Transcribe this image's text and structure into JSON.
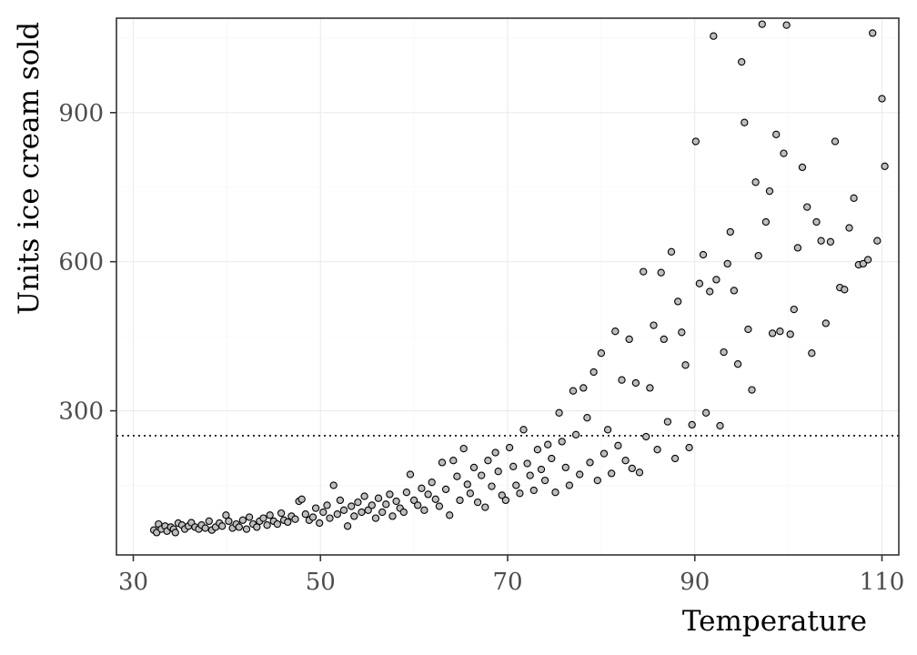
{
  "chart_data": {
    "type": "scatter",
    "title": "",
    "xlabel": "Temperature",
    "ylabel": "Units ice cream sold",
    "xlim": [
      28.2,
      111.8
    ],
    "ylim": [
      10,
      1090
    ],
    "x_ticks": [
      30,
      50,
      70,
      90,
      110
    ],
    "y_ticks": [
      300,
      600,
      900
    ],
    "x_tick_labels": [
      "30",
      "50",
      "70",
      "90",
      "110"
    ],
    "y_tick_labels": [
      "300",
      "600",
      "900"
    ],
    "grid": true,
    "legend": "none",
    "reference_line": {
      "y": 250,
      "style": "dotted"
    },
    "point_fill": "#bebebe",
    "point_stroke": "#000000",
    "points": [
      [
        32.2,
        60
      ],
      [
        32.5,
        55
      ],
      [
        32.7,
        72
      ],
      [
        33.0,
        62
      ],
      [
        33.4,
        68
      ],
      [
        33.6,
        58
      ],
      [
        34.0,
        66
      ],
      [
        34.3,
        62
      ],
      [
        34.5,
        55
      ],
      [
        34.8,
        74
      ],
      [
        35.2,
        70
      ],
      [
        35.5,
        62
      ],
      [
        35.9,
        68
      ],
      [
        36.2,
        75
      ],
      [
        36.6,
        66
      ],
      [
        37.0,
        62
      ],
      [
        37.3,
        70
      ],
      [
        37.7,
        64
      ],
      [
        38.1,
        78
      ],
      [
        38.4,
        60
      ],
      [
        38.8,
        66
      ],
      [
        39.2,
        74
      ],
      [
        39.5,
        68
      ],
      [
        39.9,
        90
      ],
      [
        40.2,
        78
      ],
      [
        40.6,
        64
      ],
      [
        41.0,
        72
      ],
      [
        41.3,
        66
      ],
      [
        41.7,
        80
      ],
      [
        42.1,
        62
      ],
      [
        42.4,
        86
      ],
      [
        42.8,
        72
      ],
      [
        43.2,
        66
      ],
      [
        43.5,
        78
      ],
      [
        43.9,
        84
      ],
      [
        44.3,
        70
      ],
      [
        44.6,
        90
      ],
      [
        45.0,
        78
      ],
      [
        45.4,
        72
      ],
      [
        45.8,
        94
      ],
      [
        46.1,
        80
      ],
      [
        46.5,
        76
      ],
      [
        46.9,
        88
      ],
      [
        47.3,
        82
      ],
      [
        47.7,
        118
      ],
      [
        48.0,
        122
      ],
      [
        48.4,
        92
      ],
      [
        48.8,
        80
      ],
      [
        49.2,
        86
      ],
      [
        49.5,
        104
      ],
      [
        49.9,
        74
      ],
      [
        50.3,
        96
      ],
      [
        50.7,
        110
      ],
      [
        51.0,
        84
      ],
      [
        51.4,
        150
      ],
      [
        51.8,
        92
      ],
      [
        52.1,
        120
      ],
      [
        52.5,
        100
      ],
      [
        52.9,
        68
      ],
      [
        53.3,
        108
      ],
      [
        53.6,
        88
      ],
      [
        54.0,
        116
      ],
      [
        54.4,
        96
      ],
      [
        54.7,
        128
      ],
      [
        55.1,
        100
      ],
      [
        55.5,
        110
      ],
      [
        55.9,
        84
      ],
      [
        56.2,
        124
      ],
      [
        56.6,
        96
      ],
      [
        57.0,
        112
      ],
      [
        57.4,
        132
      ],
      [
        57.7,
        88
      ],
      [
        58.1,
        118
      ],
      [
        58.5,
        104
      ],
      [
        58.9,
        96
      ],
      [
        59.2,
        136
      ],
      [
        59.6,
        172
      ],
      [
        60.0,
        120
      ],
      [
        60.4,
        110
      ],
      [
        60.8,
        144
      ],
      [
        61.1,
        100
      ],
      [
        61.5,
        132
      ],
      [
        61.9,
        156
      ],
      [
        62.3,
        122
      ],
      [
        62.7,
        108
      ],
      [
        63.0,
        196
      ],
      [
        63.4,
        142
      ],
      [
        63.8,
        90
      ],
      [
        64.2,
        200
      ],
      [
        64.6,
        168
      ],
      [
        64.9,
        120
      ],
      [
        65.3,
        224
      ],
      [
        65.7,
        152
      ],
      [
        66.0,
        134
      ],
      [
        66.4,
        186
      ],
      [
        66.8,
        116
      ],
      [
        67.2,
        170
      ],
      [
        67.6,
        106
      ],
      [
        67.9,
        200
      ],
      [
        68.3,
        148
      ],
      [
        68.7,
        216
      ],
      [
        69.0,
        178
      ],
      [
        69.4,
        130
      ],
      [
        69.8,
        120
      ],
      [
        70.2,
        226
      ],
      [
        70.6,
        188
      ],
      [
        70.9,
        150
      ],
      [
        71.3,
        134
      ],
      [
        71.7,
        262
      ],
      [
        72.1,
        194
      ],
      [
        72.4,
        170
      ],
      [
        72.8,
        140
      ],
      [
        73.2,
        222
      ],
      [
        73.6,
        182
      ],
      [
        74.0,
        160
      ],
      [
        74.3,
        232
      ],
      [
        74.7,
        204
      ],
      [
        75.1,
        136
      ],
      [
        75.5,
        296
      ],
      [
        75.8,
        238
      ],
      [
        76.2,
        186
      ],
      [
        76.6,
        150
      ],
      [
        77.0,
        340
      ],
      [
        77.3,
        252
      ],
      [
        77.7,
        172
      ],
      [
        78.1,
        346
      ],
      [
        78.5,
        286
      ],
      [
        78.8,
        196
      ],
      [
        79.2,
        378
      ],
      [
        79.6,
        160
      ],
      [
        80.0,
        416
      ],
      [
        80.3,
        214
      ],
      [
        80.7,
        262
      ],
      [
        81.1,
        174
      ],
      [
        81.5,
        460
      ],
      [
        81.8,
        230
      ],
      [
        82.2,
        362
      ],
      [
        82.6,
        200
      ],
      [
        83.0,
        444
      ],
      [
        83.3,
        184
      ],
      [
        83.7,
        356
      ],
      [
        84.1,
        176
      ],
      [
        84.5,
        580
      ],
      [
        84.8,
        248
      ],
      [
        85.2,
        346
      ],
      [
        85.6,
        472
      ],
      [
        86.0,
        222
      ],
      [
        86.4,
        578
      ],
      [
        86.7,
        444
      ],
      [
        87.1,
        278
      ],
      [
        87.5,
        620
      ],
      [
        87.9,
        204
      ],
      [
        88.2,
        520
      ],
      [
        88.6,
        458
      ],
      [
        89.0,
        392
      ],
      [
        89.4,
        226
      ],
      [
        89.7,
        272
      ],
      [
        90.1,
        842
      ],
      [
        90.5,
        556
      ],
      [
        90.9,
        614
      ],
      [
        91.2,
        296
      ],
      [
        91.6,
        540
      ],
      [
        92.0,
        1054
      ],
      [
        92.3,
        564
      ],
      [
        92.7,
        270
      ],
      [
        93.1,
        418
      ],
      [
        93.5,
        596
      ],
      [
        93.8,
        660
      ],
      [
        94.2,
        542
      ],
      [
        94.6,
        394
      ],
      [
        95.0,
        1002
      ],
      [
        95.3,
        880
      ],
      [
        95.7,
        464
      ],
      [
        96.1,
        342
      ],
      [
        96.5,
        760
      ],
      [
        96.8,
        612
      ],
      [
        97.2,
        1078
      ],
      [
        97.6,
        680
      ],
      [
        98.0,
        742
      ],
      [
        98.3,
        456
      ],
      [
        98.7,
        856
      ],
      [
        99.1,
        460
      ],
      [
        99.5,
        818
      ],
      [
        99.8,
        1076
      ],
      [
        100.2,
        454
      ],
      [
        100.6,
        504
      ],
      [
        101.0,
        628
      ],
      [
        101.5,
        790
      ],
      [
        102.0,
        710
      ],
      [
        102.5,
        416
      ],
      [
        103.0,
        680
      ],
      [
        103.5,
        642
      ],
      [
        104.0,
        476
      ],
      [
        104.5,
        640
      ],
      [
        105.0,
        842
      ],
      [
        105.5,
        548
      ],
      [
        106.0,
        544
      ],
      [
        106.5,
        668
      ],
      [
        107.0,
        728
      ],
      [
        107.5,
        594
      ],
      [
        108.0,
        596
      ],
      [
        108.5,
        604
      ],
      [
        109.0,
        1060
      ],
      [
        109.5,
        642
      ],
      [
        110.0,
        928
      ],
      [
        110.3,
        792
      ]
    ]
  }
}
